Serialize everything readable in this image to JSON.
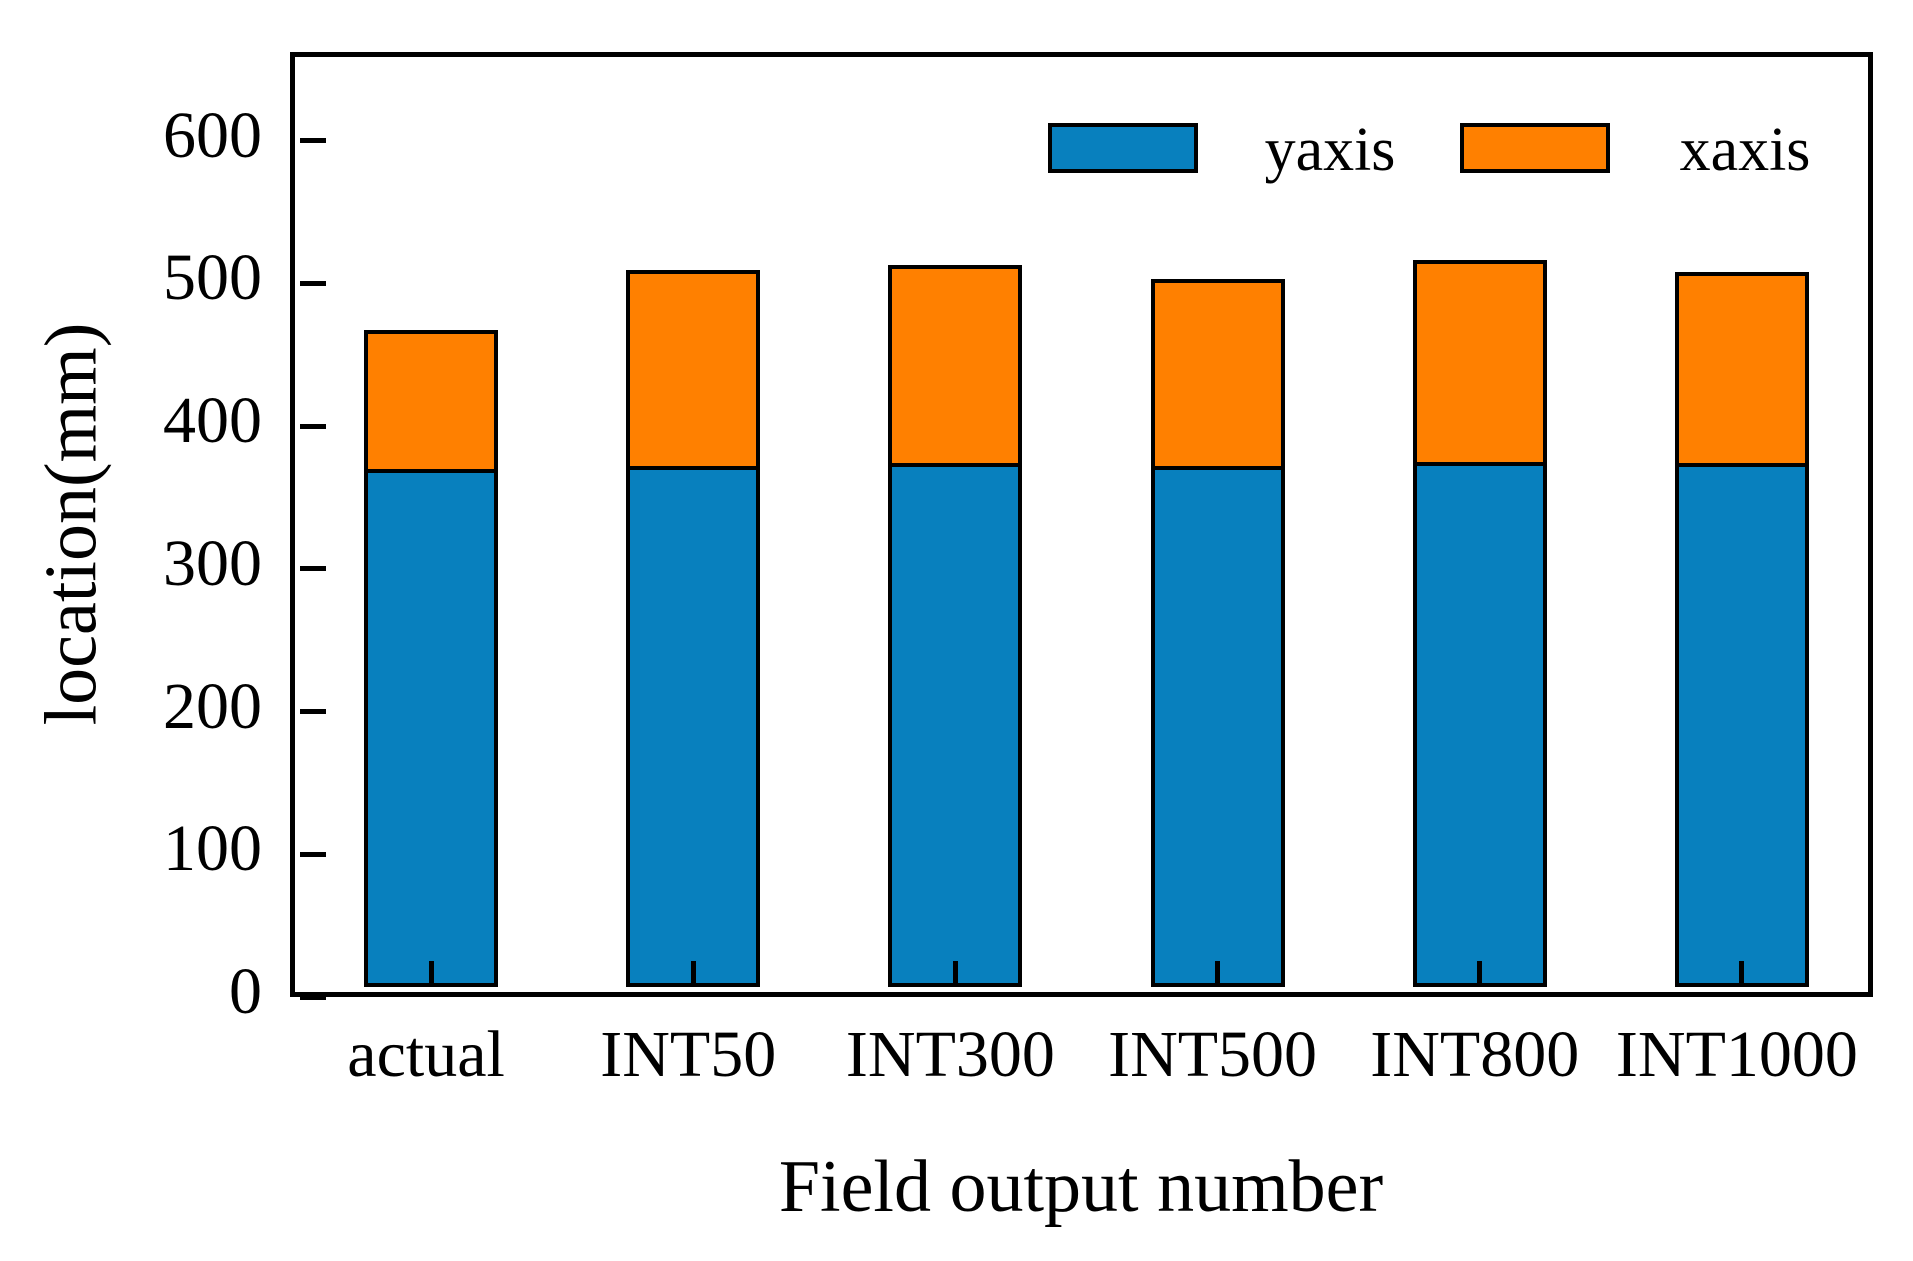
{
  "chart_data": {
    "type": "bar",
    "stacked": true,
    "title": "",
    "xlabel": "Field output number",
    "ylabel": "location(mm)",
    "categories": [
      "actual",
      "INT50",
      "INT300",
      "INT500",
      "INT800",
      "INT1000"
    ],
    "series": [
      {
        "name": "yaxis",
        "color": "#0880BE",
        "values": [
          360,
          362,
          364,
          362,
          365,
          364
        ]
      },
      {
        "name": "xaxis",
        "color": "#FF8000",
        "values": [
          100,
          140,
          142,
          134,
          144,
          137
        ]
      }
    ],
    "yticks": [
      0,
      100,
      200,
      300,
      400,
      500,
      600
    ],
    "ylim": [
      0,
      655
    ],
    "grid": false,
    "bar_edge_color": "#000000",
    "axis_color": "#000000",
    "legend": {
      "frame": false,
      "position": "top-right-inside",
      "entries": [
        "yaxis",
        "xaxis"
      ]
    }
  }
}
